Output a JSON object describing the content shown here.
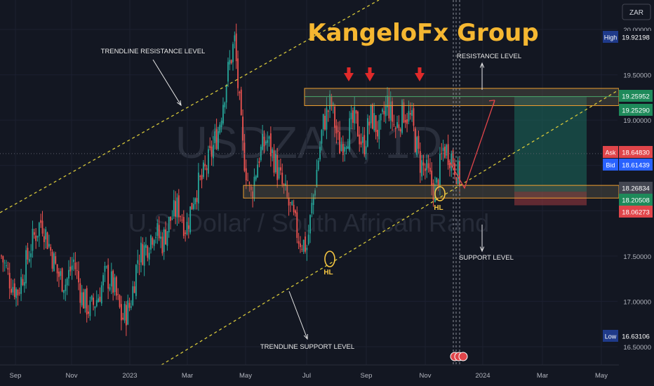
{
  "currency_button": "ZAR",
  "watermark": {
    "symbol": "USDZAR, 1D",
    "description": "U.S. Dollar / South African Rand"
  },
  "brand_title": "KangeloFx Group",
  "annotations": {
    "trendline_resistance": "TRENDLINE RESISTANCE LEVEL",
    "resistance": "RESISTANCE LEVEL",
    "support": "SUPPORT LEVEL",
    "trendline_support": "TRENDLINE SUPPORT LEVEL",
    "hl_1": "HL",
    "hl_2": "HL"
  },
  "colors": {
    "background": "#131722",
    "up_candle": "#26a69a",
    "down_candle": "#ef5350",
    "title": "#f5b731",
    "trendline": "#d8c93a",
    "zone_border": "#f0a030",
    "arrow": "#e02a2a",
    "projection": "#e0454a"
  },
  "chart_data": {
    "type": "candlestick",
    "symbol": "USDZAR",
    "timeframe": "1D",
    "x_ticks": [
      "Sep",
      "Nov",
      "2023",
      "Mar",
      "May",
      "Jul",
      "Sep",
      "Nov",
      "2024",
      "Mar",
      "May"
    ],
    "y_ticks": [
      "20.00000",
      "19.50000",
      "19.00000",
      "17.50000",
      "17.00000",
      "16.50000"
    ],
    "ylim": [
      16.4,
      20.2
    ],
    "price_labels": [
      {
        "label": "High",
        "value": "19.92198",
        "kind": "high"
      },
      {
        "label": "",
        "value": "19.25952",
        "kind": "green"
      },
      {
        "label": "",
        "value": "19.25290",
        "kind": "green"
      },
      {
        "label": "Ask",
        "value": "18.64830",
        "kind": "ask"
      },
      {
        "label": "Bid",
        "value": "18.61439",
        "kind": "bid"
      },
      {
        "label": "",
        "value": "18.26834",
        "kind": "gray"
      },
      {
        "label": "",
        "value": "18.20508",
        "kind": "green"
      },
      {
        "label": "",
        "value": "18.06273",
        "kind": "red"
      },
      {
        "label": "Low",
        "value": "16.63106",
        "kind": "low"
      }
    ],
    "resistance_zone": [
      19.16,
      19.35
    ],
    "support_zone": [
      18.14,
      18.28
    ],
    "trade_position": {
      "entry": 18.21,
      "target": 19.26,
      "stop": 18.06
    },
    "projected_path": [
      18.55,
      18.25,
      19.22
    ],
    "close_series": [
      17.5,
      17.25,
      17.1,
      17.4,
      17.7,
      17.9,
      17.6,
      17.3,
      17.2,
      17.45,
      17.05,
      16.9,
      17.05,
      17.3,
      17.15,
      16.8,
      16.95,
      17.5,
      17.6,
      17.8,
      17.65,
      17.9,
      18.05,
      17.8,
      18.2,
      18.35,
      18.6,
      18.9,
      19.45,
      19.88,
      18.7,
      18.15,
      18.6,
      18.8,
      18.55,
      18.25,
      18.0,
      17.7,
      17.6,
      18.3,
      18.95,
      19.2,
      18.7,
      18.85,
      19.0,
      18.7,
      19.05,
      18.85,
      19.2,
      18.9,
      19.1,
      19.0,
      18.55,
      18.4,
      18.2,
      18.7,
      18.6,
      18.35
    ],
    "zone_hits": [
      3,
      3
    ]
  }
}
